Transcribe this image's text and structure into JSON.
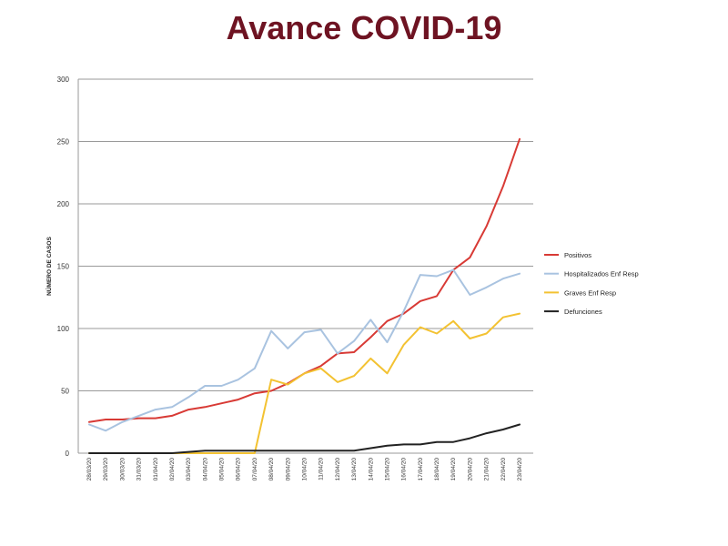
{
  "title": "Avance COVID-19",
  "colors": {
    "title": "#6e1322"
  },
  "chart_data": {
    "type": "line",
    "title": "Avance COVID-19",
    "xlabel": "",
    "ylabel": "NÚMERO DE CASOS",
    "ylim": [
      0,
      300
    ],
    "yticks": [
      0,
      50,
      100,
      150,
      200,
      250,
      300
    ],
    "grid": true,
    "legend_position": "right",
    "categories": [
      "28/03/20",
      "29/03/20",
      "30/03/20",
      "31/03/20",
      "01/04/20",
      "02/04/20",
      "03/04/20",
      "04/04/20",
      "05/04/20",
      "06/04/20",
      "07/04/20",
      "08/04/20",
      "09/04/20",
      "10/04/20",
      "11/04/20",
      "12/04/20",
      "13/04/20",
      "14/04/20",
      "15/04/20",
      "16/04/20",
      "17/04/20",
      "18/04/20",
      "19/04/20",
      "20/04/20",
      "21/04/20",
      "22/04/20",
      "23/04/20"
    ],
    "series": [
      {
        "name": "Positivos",
        "color": "#d83a35",
        "values": [
          25,
          27,
          27,
          28,
          28,
          30,
          35,
          37,
          40,
          43,
          48,
          50,
          56,
          64,
          70,
          80,
          81,
          93,
          106,
          112,
          122,
          126,
          147,
          157,
          182,
          214,
          252
        ]
      },
      {
        "name": "Hospitalizados  Enf Resp",
        "color": "#a9c3e0",
        "values": [
          23,
          18,
          25,
          30,
          35,
          37,
          45,
          54,
          54,
          59,
          68,
          98,
          84,
          97,
          99,
          80,
          90,
          107,
          89,
          114,
          143,
          142,
          147,
          127,
          133,
          140,
          144
        ]
      },
      {
        "name": "Graves Enf Resp",
        "color": "#f3c232",
        "values": [
          0,
          0,
          0,
          0,
          0,
          0,
          0,
          0,
          0,
          0,
          0,
          59,
          55,
          64,
          68,
          57,
          62,
          76,
          64,
          87,
          101,
          96,
          106,
          92,
          96,
          109,
          112
        ]
      },
      {
        "name": "Defunciones",
        "color": "#222222",
        "values": [
          0,
          0,
          0,
          0,
          0,
          0,
          1,
          2,
          2,
          2,
          2,
          2,
          2,
          2,
          2,
          2,
          2,
          4,
          6,
          7,
          7,
          9,
          9,
          12,
          16,
          19,
          23
        ]
      }
    ]
  }
}
